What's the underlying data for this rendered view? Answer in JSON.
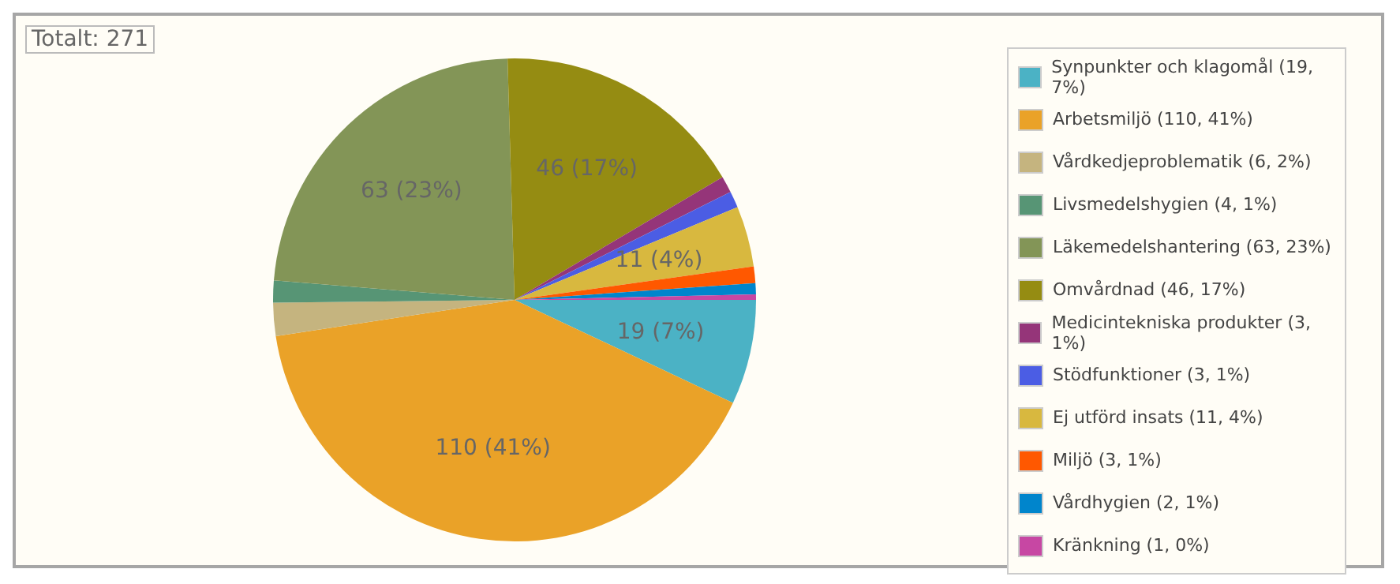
{
  "chart_data": {
    "type": "pie",
    "title": "Totalt: 271",
    "categories": [
      "Synpunkter och klagomål (19, 7%)",
      "Arbetsmiljö (110, 41%)",
      "Vårdkedjeproblematik (6, 2%)",
      "Livsmedelshygien (4, 1%)",
      "Läkemedelshantering (63, 23%)",
      "Omvårdnad (46, 17%)",
      "Medicintekniska produkter (3, 1%)",
      "Stödfunktioner (3, 1%)",
      "Ej utförd insats (11, 4%)",
      "Miljö (3, 1%)",
      "Vårdhygien (2, 1%)",
      "Kränkning (1, 0%)"
    ],
    "values": [
      19,
      110,
      6,
      4,
      63,
      46,
      3,
      3,
      11,
      3,
      2,
      1
    ],
    "colors": [
      "#4bb2c5",
      "#eaa228",
      "#c5b47f",
      "#579575",
      "#839557",
      "#958c12",
      "#953579",
      "#4b5de4",
      "#d8b83f",
      "#ff5800",
      "#0085cc",
      "#c747a3"
    ],
    "value_labels": [
      "19 (7%)",
      "110 (41%)",
      null,
      null,
      "63 (23%)",
      "46 (17%)",
      null,
      null,
      "11 (4%)",
      null,
      null,
      null
    ],
    "legend": "right"
  }
}
